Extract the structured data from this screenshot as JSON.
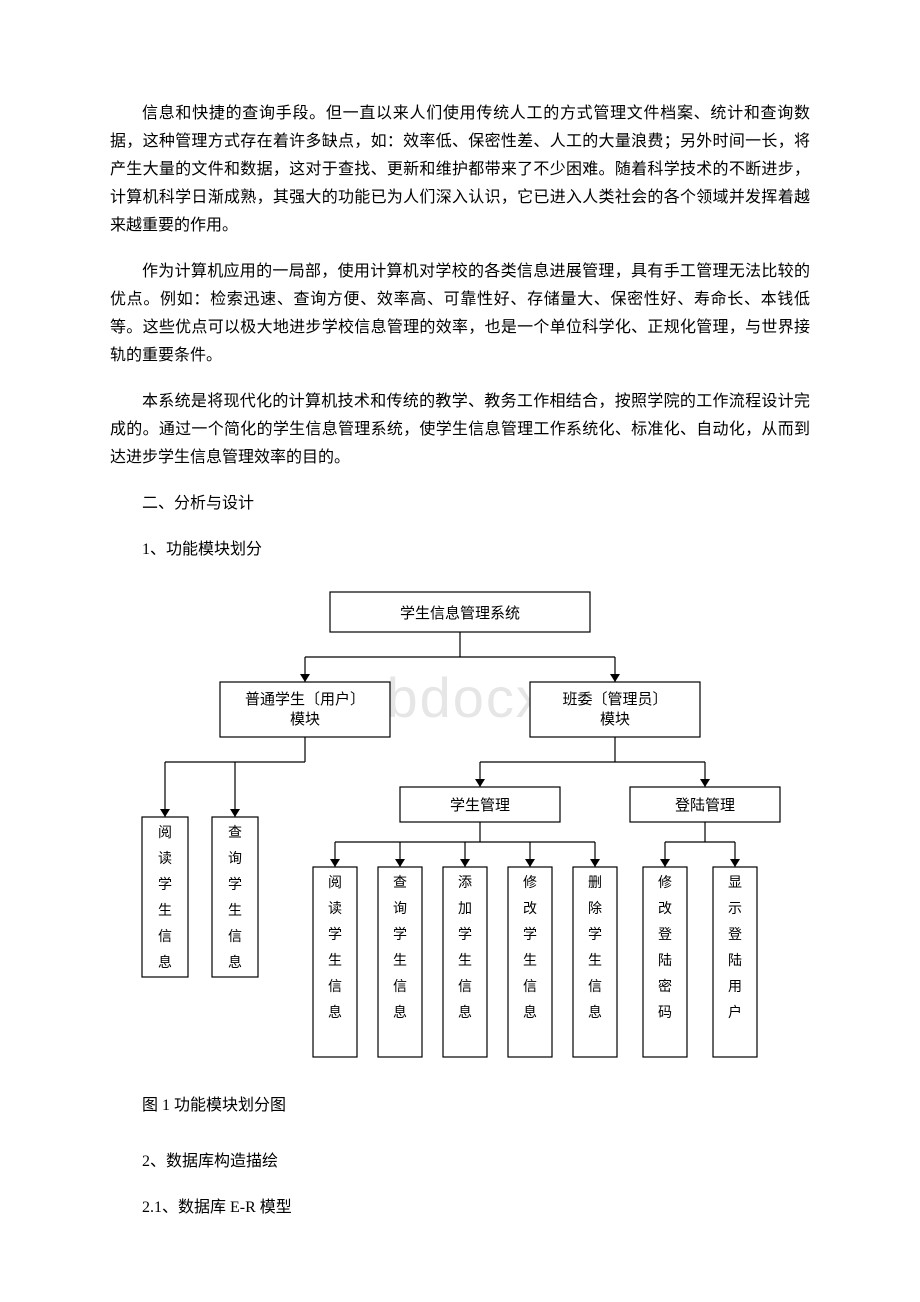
{
  "paragraphs": {
    "p1": "信息和快捷的查询手段。但一直以来人们使用传统人工的方式管理文件档案、统计和查询数据，这种管理方式存在着许多缺点，如：效率低、保密性差、人工的大量浪费；另外时间一长，将产生大量的文件和数据，这对于查找、更新和维护都带来了不少困难。随着科学技术的不断进步，计算机科学日渐成熟，其强大的功能已为人们深入认识，它已进入人类社会的各个领域并发挥着越来越重要的作用。",
    "p2": "作为计算机应用的一局部，使用计算机对学校的各类信息进展管理，具有手工管理无法比较的优点。例如：检索迅速、查询方便、效率高、可靠性好、存储量大、保密性好、寿命长、本钱低等。这些优点可以极大地进步学校信息管理的效率，也是一个单位科学化、正规化管理，与世界接轨的重要条件。",
    "p3": "本系统是将现代化的计算机技术和传统的教学、教务工作相结合，按照学院的工作流程设计完成的。通过一个简化的学生信息管理系统，使学生信息管理工作系统化、标准化、自动化，从而到达进步学生信息管理效率的目的。"
  },
  "headings": {
    "h1": "二、分析与设计",
    "h2": "1、功能模块划分",
    "h3": "2、数据库构造描绘",
    "h4": "2.1、数据库 E-R 模型"
  },
  "caption": "图 1 功能模块划分图",
  "watermark": "www.bdocx.com",
  "diagram": {
    "root": "学生信息管理系统",
    "level2": {
      "left": {
        "l1": "普通学生〔用户〕",
        "l2": "模块"
      },
      "right": {
        "l1": "班委〔管理员〕",
        "l2": "模块"
      }
    },
    "level3": {
      "m1": "学生管理",
      "m2": "登陆管理"
    },
    "leftLeaves": [
      "阅读学生信息",
      "查询学生信息"
    ],
    "midLeaves": [
      "阅读学生信息",
      "查询学生信息",
      "添加学生信息",
      "修改学生信息",
      "删除学生信息"
    ],
    "rightLeaves": [
      "修改登陆密码",
      "显示登陆用户"
    ]
  }
}
